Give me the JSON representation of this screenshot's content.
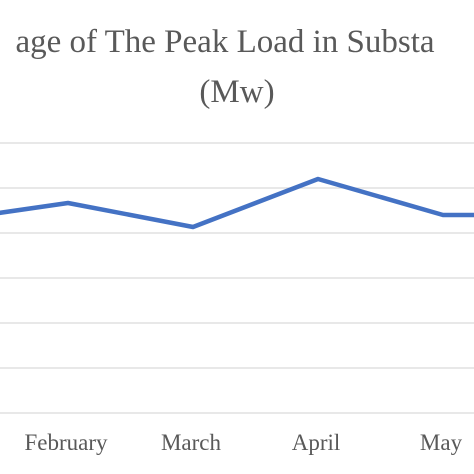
{
  "chart_data": {
    "type": "line",
    "title_line1": "age of The Peak Load in Substa",
    "title_line2": "(Mw)",
    "categories": [
      "",
      "February",
      "March",
      "April",
      "May",
      ""
    ],
    "series": [
      {
        "values": [
          3.2,
          3.5,
          3.1,
          3.9,
          3.3,
          3.3
        ]
      }
    ],
    "ylim": [
      0,
      4.5
    ],
    "grid": true,
    "line_color": "#4472C4",
    "grid_color": "#d9d9d9"
  }
}
